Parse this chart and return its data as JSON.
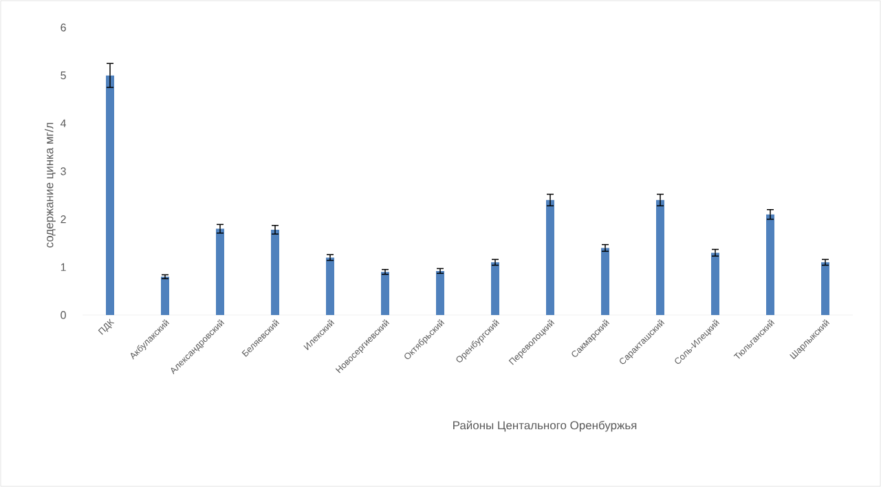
{
  "chart_data": {
    "type": "bar",
    "xlabel": "Районы Центального Оренбуржья",
    "ylabel": "содержание цинка мг/л",
    "categories": [
      "ПДК",
      "Акбулакский",
      "Александровский",
      "Беляевский",
      "Илекский",
      "Новосергиевский",
      "Октябрьский",
      "Оренбургский",
      "Переволоцкий",
      "Сакмарский",
      "Саракташский",
      "Соль-Илецкий",
      "Тюльганский",
      "Шарлыкский"
    ],
    "values": [
      5.0,
      0.8,
      1.8,
      1.78,
      1.2,
      0.9,
      0.92,
      1.1,
      2.4,
      1.4,
      2.4,
      1.3,
      2.1,
      1.1
    ],
    "errors": [
      0.25,
      0.04,
      0.09,
      0.09,
      0.06,
      0.05,
      0.05,
      0.06,
      0.12,
      0.07,
      0.12,
      0.07,
      0.1,
      0.06
    ],
    "color": "#4f81bd",
    "ylim": [
      0,
      6
    ],
    "yticks": [
      0,
      1,
      2,
      3,
      4,
      5,
      6
    ]
  }
}
